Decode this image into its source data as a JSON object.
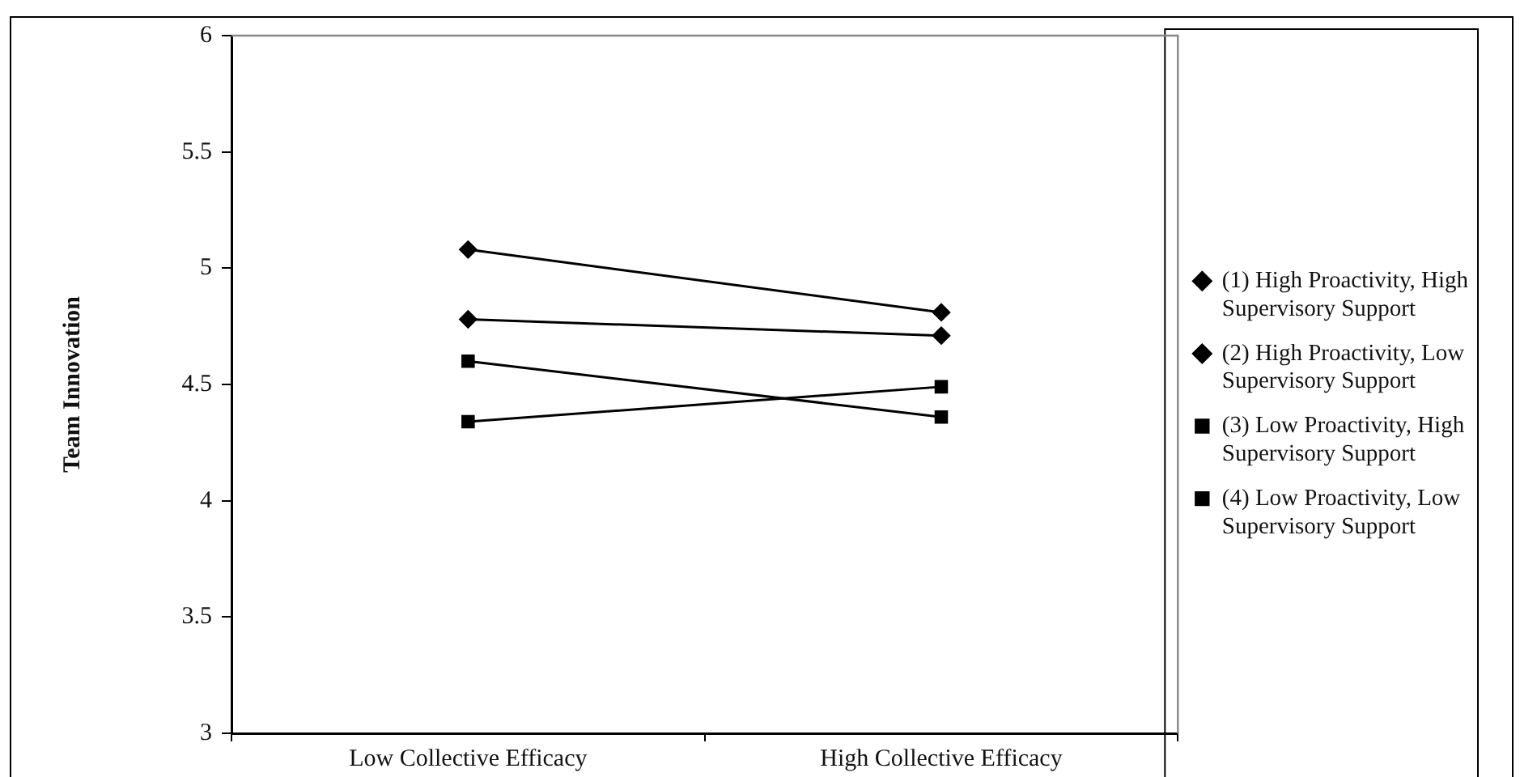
{
  "chart_data": {
    "type": "line",
    "ylabel": "Team Innovation",
    "categories": [
      "Low Collective Efficacy",
      "High Collective Efficacy"
    ],
    "ylim": [
      3,
      6
    ],
    "yticks": [
      3,
      3.5,
      4,
      4.5,
      5,
      5.5,
      6
    ],
    "grid": false,
    "legend": "right",
    "series": [
      {
        "name": "(1) High Proactivity, High Supervisory Support",
        "color": "#000000",
        "marker": "diamond",
        "values": [
          5.08,
          4.81
        ]
      },
      {
        "name": "(2) High Proactivity, Low Supervisory Support",
        "color": "#000000",
        "marker": "diamond",
        "values": [
          4.78,
          4.71
        ]
      },
      {
        "name": "(3) Low Proactivity, High Supervisory Support",
        "color": "#000000",
        "marker": "square",
        "values": [
          4.6,
          4.36
        ]
      },
      {
        "name": "(4) Low Proactivity, Low Supervisory Support",
        "color": "#000000",
        "marker": "square",
        "values": [
          4.34,
          4.49
        ]
      }
    ]
  }
}
